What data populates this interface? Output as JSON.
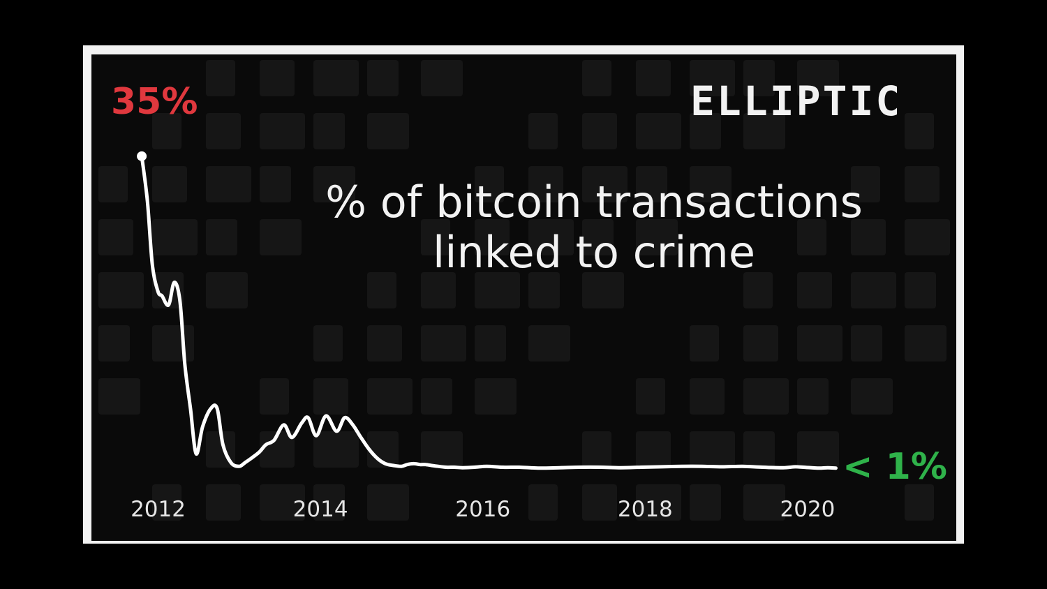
{
  "brand": {
    "logo_text": "ELLIPTIC"
  },
  "chart_data": {
    "type": "line",
    "title_lines": [
      "% of bitcoin transactions",
      "linked to crime"
    ],
    "xlabel": "",
    "ylabel": "",
    "x_ticks": [
      2012,
      2014,
      2016,
      2018,
      2020
    ],
    "xlim": [
      2011.6,
      2020.8
    ],
    "ylim": [
      0,
      37
    ],
    "grid": false,
    "legend": "none",
    "series": [
      {
        "x": [
          2011.85,
          2011.92,
          2011.98,
          2012.05,
          2012.1,
          2012.18,
          2012.25,
          2012.32,
          2012.38,
          2012.45,
          2012.52,
          2012.6,
          2012.7,
          2012.78,
          2012.85,
          2012.95,
          2013.05,
          2013.12,
          2013.2,
          2013.3,
          2013.38,
          2013.48,
          2013.6,
          2013.7,
          2013.82,
          2013.9,
          2014.0,
          2014.12,
          2014.25,
          2014.35,
          2014.45,
          2014.55,
          2014.65,
          2014.75,
          2014.85,
          2014.95,
          2015.05,
          2015.12,
          2015.2,
          2015.28,
          2015.35,
          2015.42,
          2015.5,
          2015.6,
          2015.7,
          2015.8,
          2015.95,
          2016.1,
          2016.3,
          2016.5,
          2016.75,
          2017.0,
          2017.25,
          2017.5,
          2017.75,
          2018.0,
          2018.25,
          2018.5,
          2018.75,
          2019.0,
          2019.25,
          2019.5,
          2019.75,
          2019.9,
          2020.0,
          2020.1,
          2020.2,
          2020.3,
          2020.4
        ],
        "y": [
          35,
          30,
          23,
          20,
          19.5,
          18.5,
          21,
          19,
          12,
          7,
          2,
          5,
          7,
          7,
          3,
          1,
          0.6,
          1,
          1.5,
          2.2,
          3,
          3.5,
          5.2,
          3.8,
          5.4,
          6,
          4,
          6.2,
          4.5,
          6,
          5.2,
          3.8,
          2.5,
          1.5,
          0.9,
          0.7,
          0.6,
          0.8,
          0.9,
          0.8,
          0.8,
          0.7,
          0.6,
          0.5,
          0.5,
          0.45,
          0.5,
          0.6,
          0.5,
          0.5,
          0.4,
          0.45,
          0.5,
          0.5,
          0.45,
          0.5,
          0.55,
          0.6,
          0.6,
          0.55,
          0.6,
          0.5,
          0.45,
          0.55,
          0.5,
          0.45,
          0.4,
          0.45,
          0.4
        ]
      }
    ],
    "annotations": {
      "start_value": "35%",
      "end_value": "< 1%"
    },
    "colors": {
      "line": "#ffffff",
      "start_value": "#e0383e",
      "end_value": "#2fb24a",
      "background": "#0a0a0a"
    }
  }
}
